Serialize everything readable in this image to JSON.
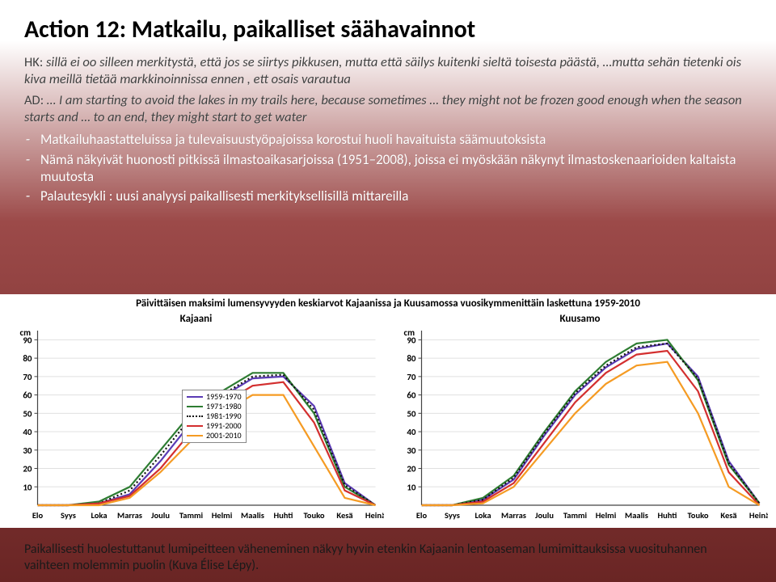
{
  "title": "Action 12: Matkailu, paikalliset säähavainnot",
  "quote1": {
    "tag": "HK:",
    "text": " sillä ei oo silleen merkitystä, että jos se siirtys pikkusen, mutta että säilys kuitenki sieltä toisesta päästä, …mutta sehän tietenki ois kiva meillä tietää markkinoinnissa ennen , ett osais varautua"
  },
  "quote2": {
    "tag": "AD:",
    "text": " … I am starting to avoid the lakes in my trails here, because sometimes … they might not be frozen good enough when the season starts and … to an end, they might start to get water"
  },
  "bullets": [
    "Matkailuhaastatteluissa ja tulevaisuustyöpajoissa korostui huoli havaituista säämuutoksista",
    "Nämä näkyivät huonosti pitkissä ilmastoaikasarjoissa (1951–2008), joissa ei myöskään näkynyt ilmastoskenaarioiden kaltaista muutosta",
    "Palautesykli : uusi analyysi paikallisesti merkityksellisillä mittareilla"
  ],
  "chart": {
    "title": "Päivittäisen maksimi lumensyvyyden keskiarvot Kajaanissa ja Kuusamossa vuosikymmenittäin laskettuna 1959-2010",
    "y_unit": "cm",
    "y_ticks": [
      10,
      20,
      30,
      40,
      50,
      60,
      70,
      80,
      90
    ],
    "x_labels": [
      "Elo",
      "Syys",
      "Loka",
      "Marras",
      "Joulu",
      "Tammi",
      "Helmi",
      "Maalis",
      "Huhti",
      "Touko",
      "Kesä",
      "Heinä"
    ],
    "colors": {
      "bg": "#ffffff",
      "grid": "#e0e0e0",
      "axis": "#444444",
      "text": "#000000",
      "s1": "#5b3bb5",
      "s2": "#2e7d32",
      "s3": "#111111",
      "s4": "#d32f2f",
      "s5": "#f59b23"
    },
    "legend": [
      {
        "label": "1959-1970",
        "key": "s1",
        "style": "solid"
      },
      {
        "label": "1971-1980",
        "key": "s2",
        "style": "solid"
      },
      {
        "label": "1981-1990",
        "key": "s3",
        "style": "dotted"
      },
      {
        "label": "1991-2000",
        "key": "s4",
        "style": "solid"
      },
      {
        "label": "2001-2010",
        "key": "s5",
        "style": "solid"
      }
    ],
    "panels": [
      {
        "name": "Kajaani",
        "series": {
          "s1": [
            0,
            0,
            1,
            6,
            24,
            45,
            59,
            69,
            70,
            54,
            12,
            0
          ],
          "s2": [
            0,
            0,
            2,
            10,
            30,
            50,
            62,
            72,
            72,
            50,
            10,
            0
          ],
          "s3": [
            0,
            0,
            1,
            8,
            27,
            48,
            60,
            70,
            71,
            52,
            11,
            0
          ],
          "s4": [
            0,
            0,
            1,
            5,
            20,
            40,
            55,
            65,
            67,
            45,
            8,
            0
          ],
          "s5": [
            0,
            0,
            0,
            4,
            18,
            35,
            50,
            60,
            60,
            32,
            4,
            0
          ]
        }
      },
      {
        "name": "Kuusamo",
        "series": {
          "s1": [
            0,
            0,
            3,
            14,
            38,
            60,
            75,
            85,
            88,
            70,
            24,
            1
          ],
          "s2": [
            0,
            0,
            4,
            16,
            40,
            62,
            78,
            88,
            90,
            68,
            22,
            1
          ],
          "s3": [
            0,
            0,
            3,
            15,
            39,
            61,
            76,
            86,
            88,
            69,
            23,
            1
          ],
          "s4": [
            0,
            0,
            2,
            12,
            34,
            56,
            72,
            82,
            84,
            62,
            18,
            0
          ],
          "s5": [
            0,
            0,
            1,
            10,
            30,
            50,
            66,
            76,
            78,
            50,
            10,
            0
          ]
        }
      }
    ]
  },
  "footer": "Paikallisesti huolestuttanut lumipeitteen väheneminen näkyy hyvin etenkin Kajaanin lentoaseman lumimittauksissa vuosituhannen vaihteen molemmin puolin (Kuva Élise Lépy)."
}
